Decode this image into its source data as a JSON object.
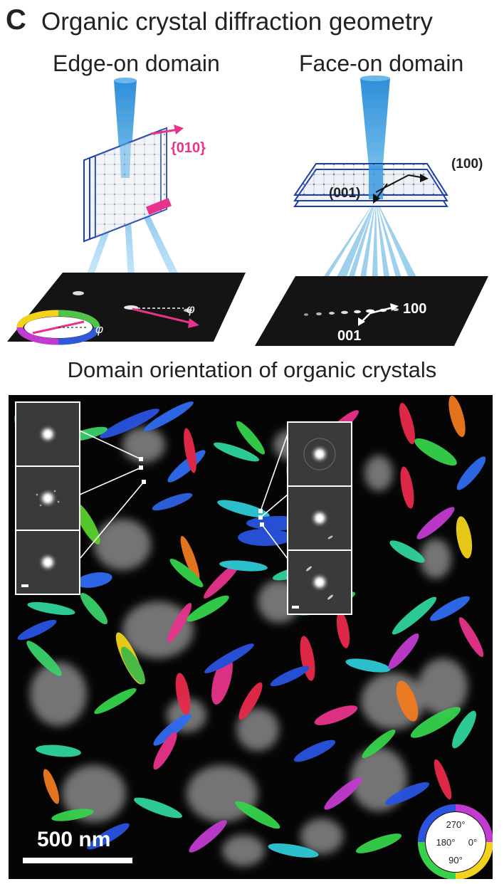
{
  "panel_letter": "C",
  "title": "Organic crystal diffraction geometry",
  "edge_on": {
    "title": "Edge-on domain",
    "label_010": "{010}",
    "phi": "φ"
  },
  "face_on": {
    "title": "Face-on domain",
    "label_100_axis": "(100)",
    "label_001_axis": "(001)",
    "label_100": "100",
    "label_001": "001"
  },
  "map_title": "Domain orientation of organic crystals",
  "scale_bar": {
    "label": "500 nm"
  },
  "color_wheel": {
    "labels": [
      "270°",
      "180°",
      "0°",
      "90°"
    ]
  },
  "colors": {
    "beam": "#3fa0db",
    "magenta": "#e8338c",
    "lattice": "#1e3fa8"
  }
}
